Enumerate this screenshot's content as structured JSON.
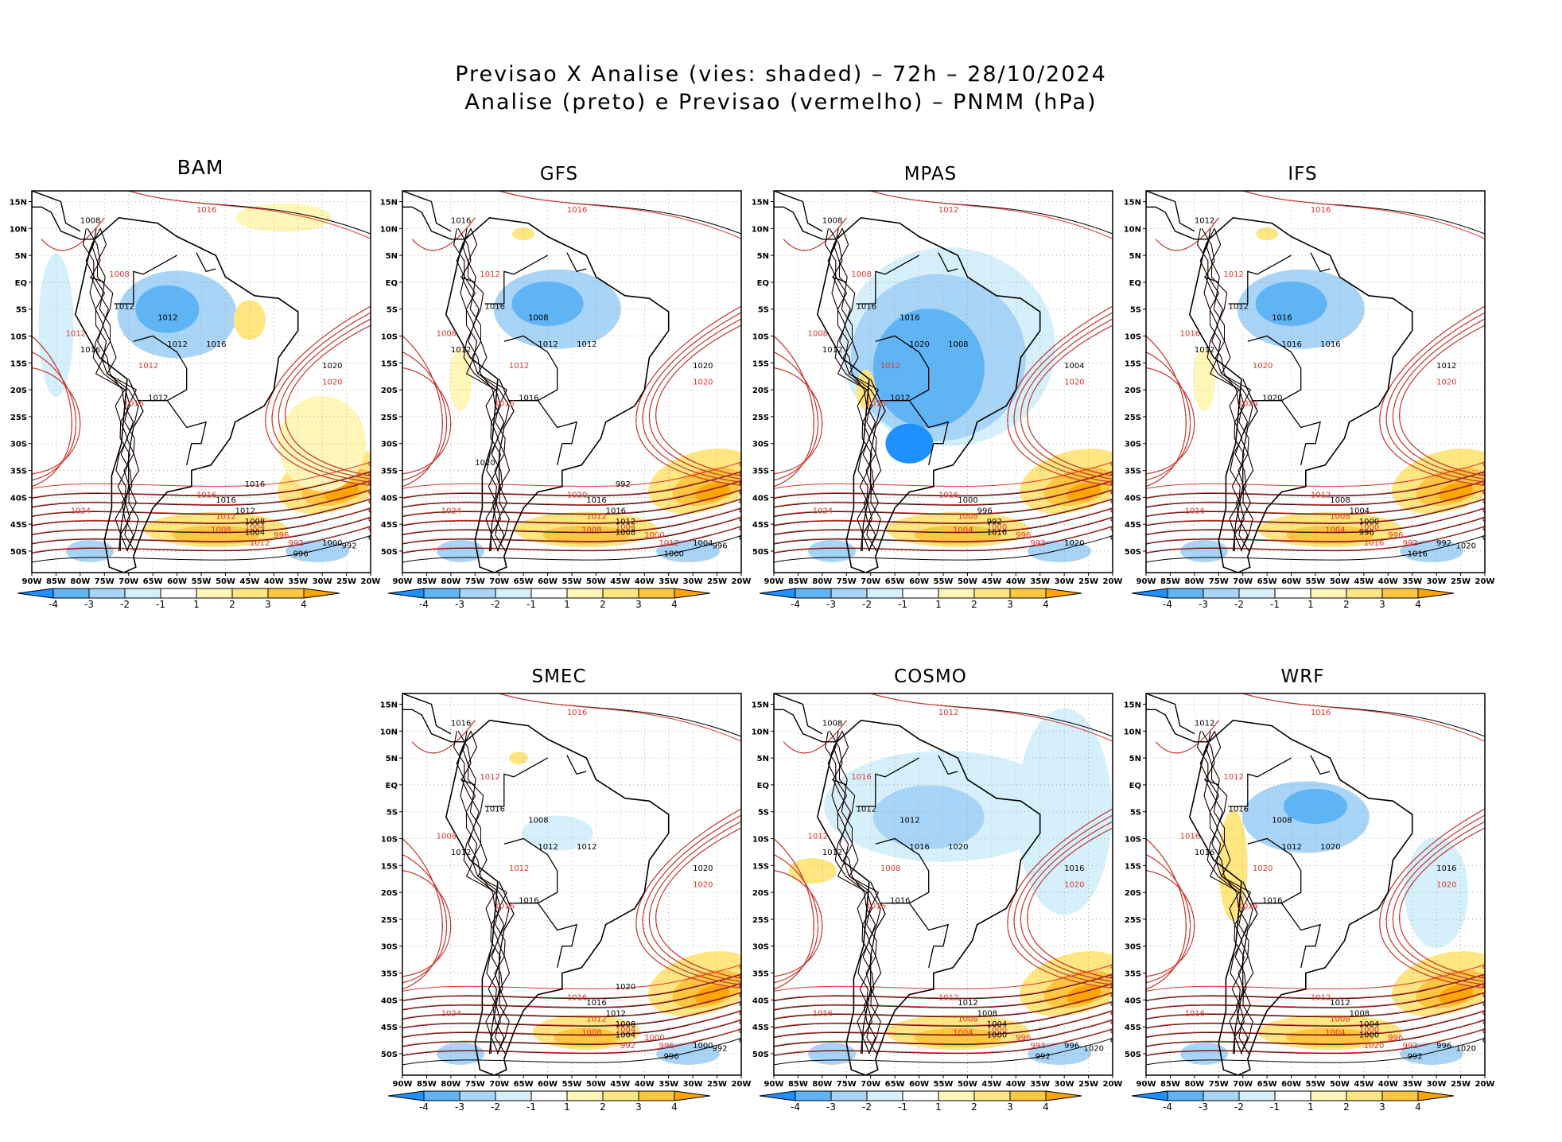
{
  "header": {
    "title_line1": "Previsao X Analise (vies: shaded) – 72h – 28/10/2024",
    "title_line2": "Analise (preto) e Previsao (vermelho) – PNMM (hPa)"
  },
  "colors": {
    "analysis_contour": "#000000",
    "forecast_contour": "#e0352b",
    "bias_neg4": "#1e90ff",
    "bias_neg3": "#5fb4f5",
    "bias_neg2": "#a8d4f7",
    "bias_neg1": "#d6f0fb",
    "bias_zero": "#ffffff",
    "bias_pos1": "#fff6b8",
    "bias_pos2": "#ffe680",
    "bias_pos3": "#ffc640",
    "bias_pos4": "#ffa500",
    "grid": "#9a9a9a"
  },
  "axes": {
    "lat_labels": [
      "15N",
      "10N",
      "5N",
      "EQ",
      "5S",
      "10S",
      "15S",
      "20S",
      "25S",
      "30S",
      "35S",
      "40S",
      "45S",
      "50S"
    ],
    "lon_labels": [
      "90W",
      "85W",
      "80W",
      "75W",
      "70W",
      "65W",
      "60W",
      "55W",
      "50W",
      "45W",
      "40W",
      "35W",
      "30W",
      "25W",
      "20W"
    ]
  },
  "colorbar": {
    "labels": [
      "-4",
      "-3",
      "-2",
      "-1",
      "1",
      "2",
      "3",
      "4"
    ]
  },
  "panels": [
    {
      "name": "BAM",
      "bias_pattern": "warm-south",
      "black_labels": [
        "1008",
        "1016",
        "1012",
        "1012",
        "1012",
        "1012",
        "1016",
        "1020",
        "1016",
        "1012",
        "1008",
        "1004",
        "1000",
        "996",
        "992",
        "1016"
      ],
      "red_labels": [
        "1016",
        "1008",
        "1012",
        "1012",
        "1016",
        "1020",
        "1024",
        "1016",
        "1012",
        "1008",
        "1004",
        "996",
        "992",
        "1012"
      ]
    },
    {
      "name": "GFS",
      "bias_pattern": "moderate",
      "black_labels": [
        "1016",
        "1012",
        "1008",
        "1012",
        "1016",
        "1016",
        "1012",
        "1020",
        "1016",
        "1016",
        "1012",
        "1008",
        "1004",
        "1000",
        "996",
        "992",
        "1020"
      ],
      "red_labels": [
        "1016",
        "1012",
        "1008",
        "1012",
        "1016",
        "1020",
        "1024",
        "1020",
        "1012",
        "1008",
        "1004",
        "1000",
        "1012"
      ]
    },
    {
      "name": "MPAS",
      "bias_pattern": "strong-cold",
      "black_labels": [
        "1008",
        "1012",
        "1016",
        "1020",
        "1016",
        "1012",
        "1008",
        "1004",
        "1000",
        "996",
        "992",
        "1016",
        "1020"
      ],
      "red_labels": [
        "1012",
        "1008",
        "1008",
        "1012",
        "1016",
        "1020",
        "1024",
        "1016",
        "1008",
        "1004",
        "1000",
        "996",
        "992"
      ]
    },
    {
      "name": "IFS",
      "bias_pattern": "moderate",
      "black_labels": [
        "1012",
        "1012",
        "1016",
        "1016",
        "1012",
        "1020",
        "1016",
        "1012",
        "1008",
        "1004",
        "1000",
        "996",
        "992",
        "1016",
        "1020"
      ],
      "red_labels": [
        "1016",
        "1012",
        "1016",
        "1020",
        "1024",
        "1020",
        "1016",
        "1012",
        "1008",
        "1004",
        "1000",
        "996",
        "992",
        "1016"
      ]
    },
    {
      "name": "SMEC",
      "bias_pattern": "weak",
      "black_labels": [
        "1016",
        "1012",
        "1008",
        "1012",
        "1016",
        "1016",
        "1012",
        "1020",
        "1016",
        "1012",
        "1008",
        "1004",
        "1000",
        "996",
        "992",
        "1020"
      ],
      "red_labels": [
        "1016",
        "1012",
        "1008",
        "1012",
        "1016",
        "1020",
        "1024",
        "1016",
        "1012",
        "1008",
        "1004",
        "1000",
        "996",
        "992"
      ]
    },
    {
      "name": "COSMO",
      "bias_pattern": "cold-north",
      "black_labels": [
        "1008",
        "1012",
        "1012",
        "1016",
        "1012",
        "1016",
        "1020",
        "1016",
        "1012",
        "1008",
        "1004",
        "1000",
        "996",
        "992",
        "1020"
      ],
      "red_labels": [
        "1012",
        "1016",
        "1012",
        "1008",
        "1016",
        "1020",
        "1016",
        "1012",
        "1008",
        "1004",
        "1000",
        "996",
        "992"
      ]
    },
    {
      "name": "WRF",
      "bias_pattern": "warm-andes",
      "black_labels": [
        "1012",
        "1016",
        "1008",
        "1012",
        "1016",
        "1016",
        "1020",
        "1016",
        "1012",
        "1008",
        "1004",
        "1000",
        "996",
        "992",
        "1020"
      ],
      "red_labels": [
        "1016",
        "1012",
        "1016",
        "1020",
        "1024",
        "1020",
        "1016",
        "1012",
        "1008",
        "1004",
        "1000",
        "996",
        "992",
        "1020"
      ]
    }
  ]
}
